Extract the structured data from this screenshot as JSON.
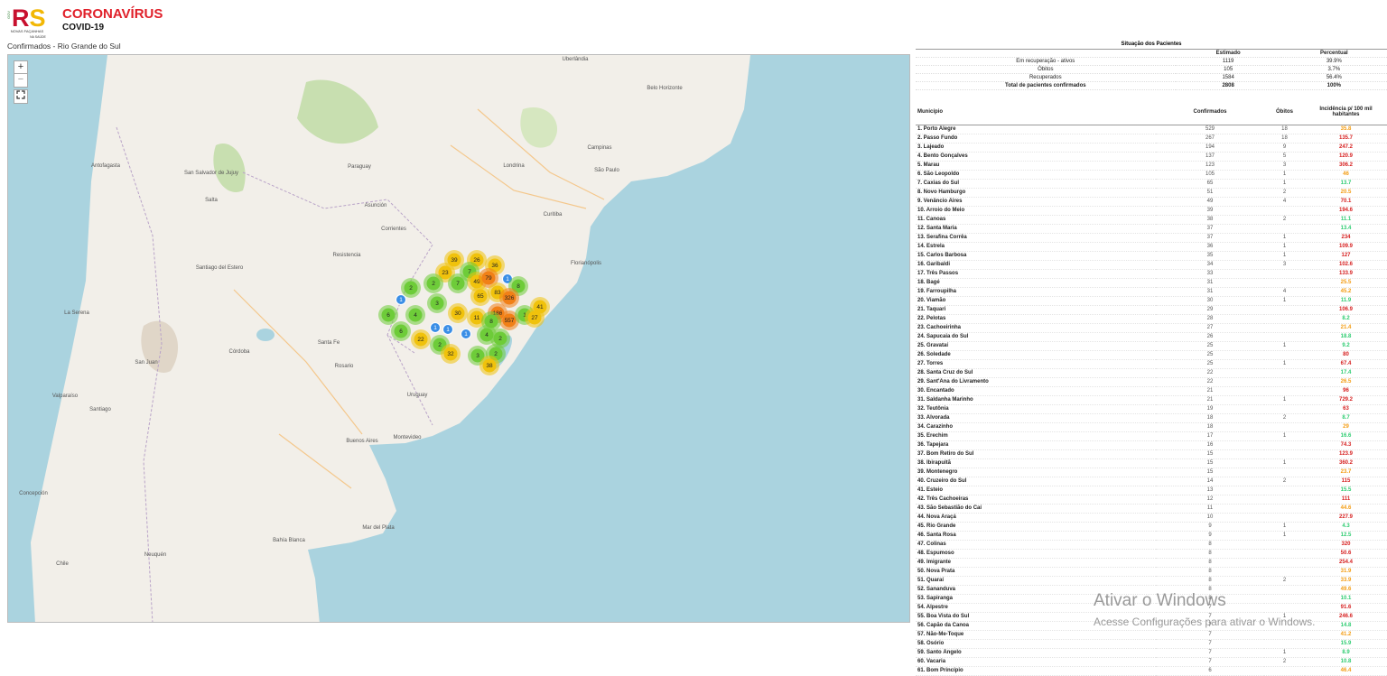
{
  "header": {
    "logo_side": "GOV",
    "logo": "RS",
    "logo_tagline": "NOVAS FAÇANHAS",
    "logo_tagline2": "NA SAÚDE",
    "title": "CORONAVÍRUS",
    "subtitle": "COVID-19"
  },
  "map": {
    "title": "Confirmados - Rio Grande do Sul",
    "zoom_in": "+",
    "zoom_out": "−",
    "labels": [
      "Uberlândia",
      "Belo Horizonte",
      "Campinas",
      "São Paulo",
      "Curitiba",
      "Florianópolis",
      "Asunción",
      "Corrientes",
      "Resistencia",
      "Paraguay",
      "Santiago del Estero",
      "Córdoba",
      "San Juan",
      "Rosario",
      "Uruguay",
      "Montevideo",
      "Buenos Aires",
      "Mar del Plata",
      "Neuquén",
      "La Serena",
      "Valparaíso",
      "Santiago",
      "Antofagasta",
      "Salta",
      "San Salvador de Jujuy",
      "Concepción",
      "Bahía Blanca",
      "Chile",
      "Londrina",
      "Santa Fe"
    ],
    "clusters": [
      39,
      26,
      36,
      23,
      7,
      49,
      79,
      1,
      2,
      2,
      7,
      8,
      65,
      83,
      326,
      1,
      3,
      41,
      6,
      4,
      30,
      11,
      186,
      557,
      1,
      27,
      8,
      1,
      1,
      1,
      6,
      4,
      2,
      22,
      2,
      32,
      3,
      2,
      38
    ]
  },
  "summary": {
    "title": "Situação dos Pacientes",
    "columns": [
      "Estimado",
      "Percentual"
    ],
    "rows": [
      {
        "label": "Em recuperação - ativos",
        "estimated": 1119,
        "percent": "39.9%"
      },
      {
        "label": "Óbitos",
        "estimated": 105,
        "percent": "3.7%"
      },
      {
        "label": "Recuperados",
        "estimated": 1584,
        "percent": "56.4%"
      },
      {
        "label": "Total de pacientes confirmados",
        "estimated": 2808,
        "percent": "100%"
      }
    ]
  },
  "municipalities": {
    "columns": [
      "Município",
      "Confirmados",
      "Óbitos",
      "Incidência p/ 100 mil habitantes"
    ],
    "rows": [
      [
        "1. Porto Alegre",
        529,
        18,
        35.8
      ],
      [
        "2. Passo Fundo",
        267,
        18,
        135.7
      ],
      [
        "3. Lajeado",
        194,
        9,
        247.2
      ],
      [
        "4. Bento Gonçalves",
        137,
        5,
        120.9
      ],
      [
        "5. Marau",
        123,
        3,
        306.2
      ],
      [
        "6. São Leopoldo",
        105,
        1,
        46
      ],
      [
        "7. Caxias do Sul",
        65,
        1,
        13.7
      ],
      [
        "8. Novo Hamburgo",
        51,
        2,
        20.5
      ],
      [
        "9. Venâncio Aires",
        49,
        4,
        70.1
      ],
      [
        "10. Arroio do Meio",
        39,
        null,
        194.6
      ],
      [
        "11. Canoas",
        38,
        2,
        11.1
      ],
      [
        "12. Santa Maria",
        37,
        null,
        13.4
      ],
      [
        "13. Serafina Corrêa",
        37,
        1,
        234
      ],
      [
        "14. Estrela",
        36,
        1,
        109.9
      ],
      [
        "15. Carlos Barbosa",
        35,
        1,
        127
      ],
      [
        "16. Garibaldi",
        34,
        3,
        102.6
      ],
      [
        "17. Três Passos",
        33,
        null,
        133.9
      ],
      [
        "18. Bagé",
        31,
        null,
        25.5
      ],
      [
        "19. Farroupilha",
        31,
        4,
        45.2
      ],
      [
        "20. Viamão",
        30,
        1,
        11.9
      ],
      [
        "21. Taquari",
        29,
        null,
        106.9
      ],
      [
        "22. Pelotas",
        28,
        null,
        8.2
      ],
      [
        "23. Cachoeirinha",
        27,
        null,
        21.4
      ],
      [
        "24. Sapucaia do Sul",
        26,
        null,
        18.8
      ],
      [
        "25. Gravataí",
        25,
        1,
        9.2
      ],
      [
        "26. Soledade",
        25,
        null,
        80
      ],
      [
        "27. Torres",
        25,
        1,
        67.4
      ],
      [
        "28. Santa Cruz do Sul",
        22,
        null,
        17.4
      ],
      [
        "29. Sant'Ana do Livramento",
        22,
        null,
        26.5
      ],
      [
        "30. Encantado",
        21,
        null,
        96
      ],
      [
        "31. Saldanha Marinho",
        21,
        1,
        729.2
      ],
      [
        "32. Teutônia",
        19,
        null,
        63
      ],
      [
        "33. Alvorada",
        18,
        2,
        8.7
      ],
      [
        "34. Carazinho",
        18,
        null,
        29
      ],
      [
        "35. Erechim",
        17,
        1,
        16.6
      ],
      [
        "36. Tapejara",
        16,
        null,
        74.3
      ],
      [
        "37. Bom Retiro do Sul",
        15,
        null,
        123.9
      ],
      [
        "38. Ibirapuitã",
        15,
        1,
        360.2
      ],
      [
        "39. Montenegro",
        15,
        null,
        23.7
      ],
      [
        "40. Cruzeiro do Sul",
        14,
        2,
        115
      ],
      [
        "41. Esteio",
        13,
        null,
        15.5
      ],
      [
        "42. Três Cachoeiras",
        12,
        null,
        111
      ],
      [
        "43. São Sebastião do Caí",
        11,
        null,
        44.6
      ],
      [
        "44. Nova Araçá",
        10,
        null,
        227.9
      ],
      [
        "45. Rio Grande",
        9,
        1,
        4.3
      ],
      [
        "46. Santa Rosa",
        9,
        1,
        12.5
      ],
      [
        "47. Colinas",
        8,
        null,
        320
      ],
      [
        "48. Espumoso",
        8,
        null,
        50.6
      ],
      [
        "49. Imigrante",
        8,
        null,
        254.4
      ],
      [
        "50. Nova Prata",
        8,
        null,
        31.9
      ],
      [
        "51. Quaraí",
        8,
        2,
        33.9
      ],
      [
        "52. Sananduva",
        8,
        null,
        49.6
      ],
      [
        "53. Sapiranga",
        8,
        null,
        10.1
      ],
      [
        "54. Alpestre",
        7,
        null,
        91.6
      ],
      [
        "55. Boa Vista do Sul",
        7,
        1,
        246.6
      ],
      [
        "56. Capão da Canoa",
        7,
        null,
        14.8
      ],
      [
        "57. Não-Me-Toque",
        7,
        null,
        41.2
      ],
      [
        "58. Osório",
        7,
        null,
        15.9
      ],
      [
        "59. Santo Ângelo",
        7,
        1,
        8.9
      ],
      [
        "60. Vacaria",
        7,
        2,
        10.8
      ],
      [
        "61. Bom Princípio",
        6,
        null,
        46.4
      ]
    ]
  },
  "watermark": {
    "title": "Ativar o Windows",
    "text": "Acesse Configurações para ativar o Windows."
  }
}
